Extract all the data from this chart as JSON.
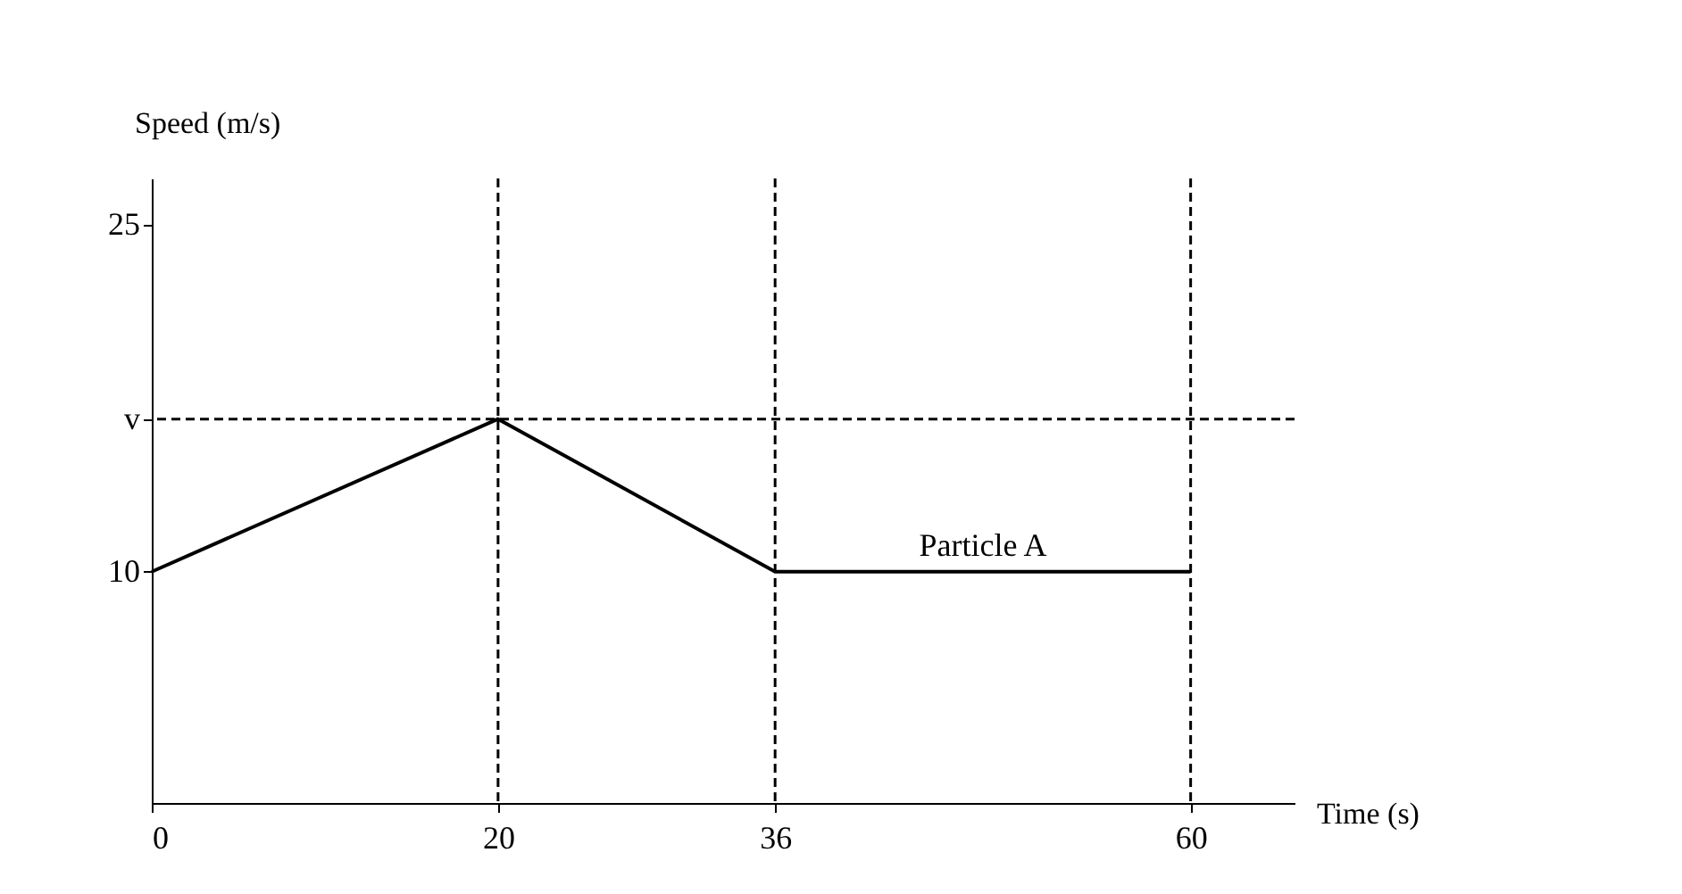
{
  "chart_data": {
    "type": "line",
    "xlabel": "Time (s)",
    "ylabel": "Speed (m/s)",
    "x": [
      0,
      20,
      36,
      60
    ],
    "series": [
      {
        "color": "#000000",
        "values": [
          10,
          16.6,
          10,
          10
        ]
      }
    ],
    "xlim": [
      0,
      66
    ],
    "ylim": [
      0,
      27
    ],
    "xticks": [
      0,
      20,
      36,
      60
    ],
    "yticks": [
      10,
      {
        "value": 16.6,
        "label": "v"
      },
      25
    ],
    "ref_lines": [
      {
        "axis": "x",
        "value": 20,
        "line_style": "dashed",
        "color": "#000000"
      },
      {
        "axis": "x",
        "value": 36,
        "line_style": "dashed",
        "color": "#000000"
      },
      {
        "axis": "x",
        "value": 60,
        "line_style": "dashed",
        "color": "#000000"
      },
      {
        "axis": "y",
        "value": 16.6,
        "line_style": "dashed",
        "color": "#000000"
      }
    ],
    "annotations": [
      {
        "text": "Particle A",
        "x": 48,
        "y": 10
      }
    ],
    "marker": "none",
    "line_style": "solid"
  }
}
